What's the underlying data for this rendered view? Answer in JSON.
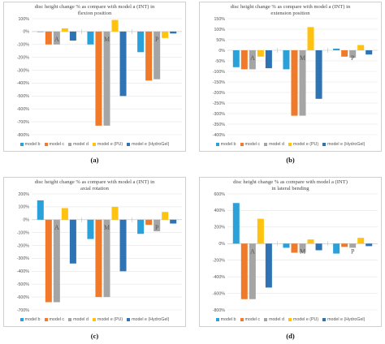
{
  "colors": {
    "model b": "#2aa1d8",
    "model c": "#f07a2a",
    "model d": "#a5a5a5",
    "model e (PU)": "#ffc20e",
    "model e (HydroGel)": "#2e74b5"
  },
  "chart_data": [
    {
      "type": "bar",
      "caption": "(a)",
      "title": "disc height change % as compare with model a (INT) in\nflexion position",
      "groups": [
        "A",
        "M",
        "P"
      ],
      "ylim": [
        -800,
        100
      ],
      "yticks": [
        "100%",
        "0%",
        "-100%",
        "-200%",
        "-300%",
        "-400%",
        "-500%",
        "-600%",
        "-700%",
        "-800%"
      ],
      "ytick_values": [
        100,
        0,
        -100,
        -200,
        -300,
        -400,
        -500,
        -600,
        -700,
        -800
      ],
      "grid": true,
      "legend_position": "bottom",
      "series": [
        {
          "name": "model b",
          "values": [
            -2,
            -100,
            -160
          ]
        },
        {
          "name": "model c",
          "values": [
            -100,
            -730,
            -380
          ]
        },
        {
          "name": "model d",
          "values": [
            -100,
            -730,
            -370
          ]
        },
        {
          "name": "model e (PU)",
          "values": [
            25,
            90,
            -50
          ]
        },
        {
          "name": "model e (HydroGel)",
          "values": [
            -70,
            -500,
            -15
          ]
        }
      ]
    },
    {
      "type": "bar",
      "caption": "(b)",
      "title": "disc height change % as compare with model a (INT) in\nextension position",
      "groups": [
        "A",
        "M",
        "P"
      ],
      "ylim": [
        -400,
        150
      ],
      "yticks": [
        "150%",
        "100%",
        "50%",
        "0%",
        "-50%",
        "-100%",
        "-150%",
        "-200%",
        "-250%",
        "-300%",
        "-350%",
        "-400%"
      ],
      "ytick_values": [
        150,
        100,
        50,
        0,
        -50,
        -100,
        -150,
        -200,
        -250,
        -300,
        -350,
        -400
      ],
      "grid": true,
      "legend_position": "bottom",
      "series": [
        {
          "name": "model b",
          "values": [
            -80,
            -90,
            8
          ]
        },
        {
          "name": "model c",
          "values": [
            -90,
            -310,
            -30
          ]
        },
        {
          "name": "model d",
          "values": [
            -90,
            -310,
            -35
          ]
        },
        {
          "name": "model e (PU)",
          "values": [
            -30,
            110,
            25
          ]
        },
        {
          "name": "model e (HydroGel)",
          "values": [
            -85,
            -230,
            -20
          ]
        }
      ]
    },
    {
      "type": "bar",
      "caption": "(c)",
      "title": "disc height change % as compare with model a (INT) in\naxial rotation",
      "groups": [
        "A",
        "M",
        "P"
      ],
      "ylim": [
        -700,
        200
      ],
      "yticks": [
        "200%",
        "100%",
        "0%",
        "-100%",
        "-200%",
        "-300%",
        "-400%",
        "-500%",
        "-600%",
        "-700%"
      ],
      "ytick_values": [
        200,
        100,
        0,
        -100,
        -200,
        -300,
        -400,
        -500,
        -600,
        -700
      ],
      "grid": true,
      "legend_position": "bottom",
      "series": [
        {
          "name": "model b",
          "values": [
            150,
            -150,
            -110
          ]
        },
        {
          "name": "model c",
          "values": [
            -640,
            -600,
            -40
          ]
        },
        {
          "name": "model d",
          "values": [
            -640,
            -600,
            -90
          ]
        },
        {
          "name": "model e (PU)",
          "values": [
            90,
            100,
            60
          ]
        },
        {
          "name": "model e (HydroGel)",
          "values": [
            -340,
            -400,
            -30
          ]
        }
      ]
    },
    {
      "type": "bar",
      "caption": "(d)",
      "title": "disc height change % as compare with model a (INT)\nin lateral bending",
      "groups": [
        "A",
        "M",
        "P"
      ],
      "ylim": [
        -800,
        600
      ],
      "yticks": [
        "600%",
        "400%",
        "200%",
        "0%",
        "-200%",
        "-400%",
        "-600%",
        "-800%"
      ],
      "ytick_values": [
        600,
        400,
        200,
        0,
        -200,
        -400,
        -600,
        -800
      ],
      "grid": true,
      "legend_position": "bottom",
      "series": [
        {
          "name": "model b",
          "values": [
            490,
            -50,
            -120
          ]
        },
        {
          "name": "model c",
          "values": [
            -670,
            -110,
            -40
          ]
        },
        {
          "name": "model d",
          "values": [
            -670,
            -110,
            -50
          ]
        },
        {
          "name": "model e (PU)",
          "values": [
            300,
            50,
            70
          ]
        },
        {
          "name": "model e (HydroGel)",
          "values": [
            -530,
            -80,
            -30
          ]
        }
      ]
    }
  ]
}
